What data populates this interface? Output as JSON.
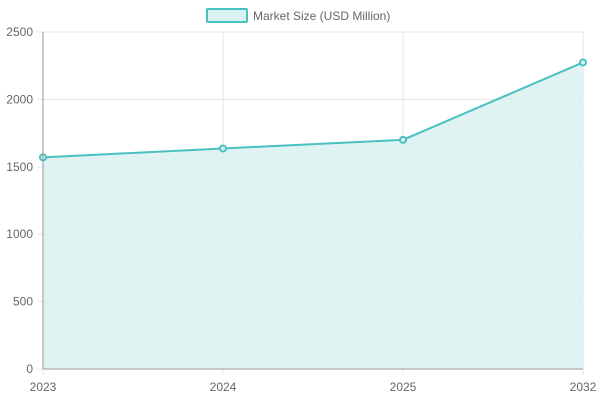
{
  "chart_data": {
    "type": "area",
    "categories": [
      "2023",
      "2024",
      "2025",
      "2032"
    ],
    "series": [
      {
        "name": "Market Size (USD Million)",
        "values": [
          1570,
          1636,
          1700,
          2274
        ]
      }
    ],
    "ylim": [
      0,
      2500
    ],
    "yticks": [
      0,
      500,
      1000,
      1500,
      2000,
      2500
    ],
    "grid": true,
    "legend_position": "top",
    "colors": {
      "line": "#4bc0c0",
      "fill": "#d9f1f1",
      "grid": "#e5e5e5",
      "axis": "#9a9a9a"
    }
  }
}
